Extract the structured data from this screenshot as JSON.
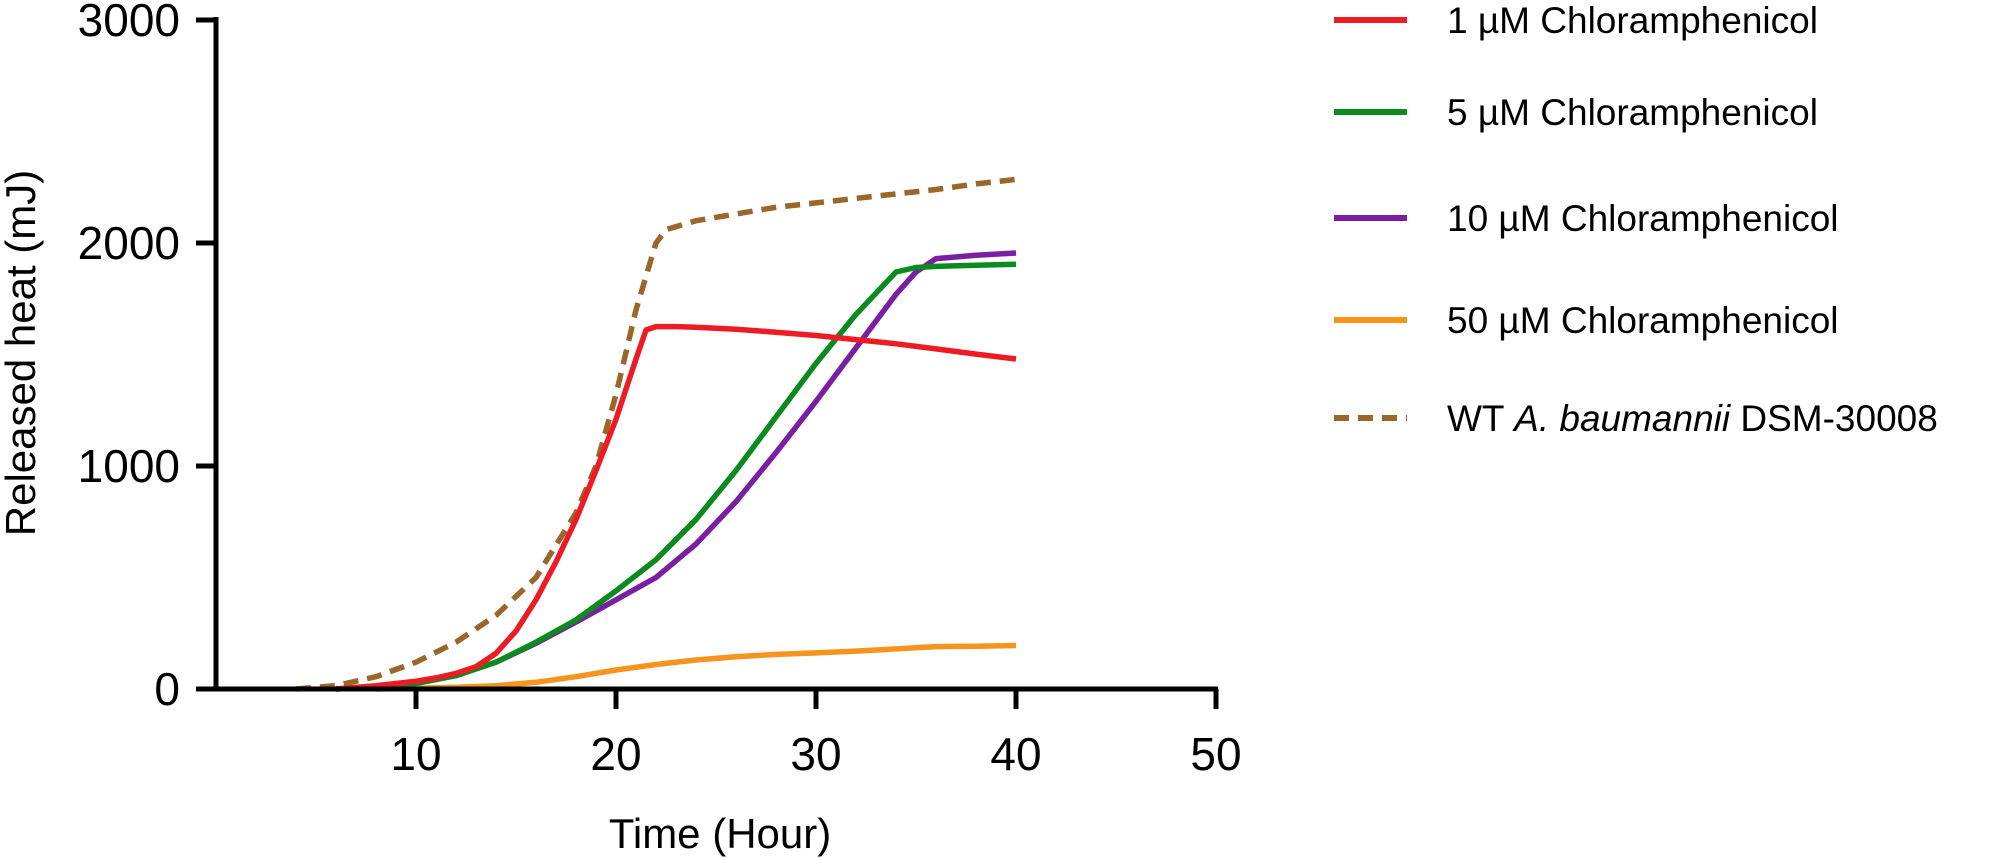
{
  "chart_data": {
    "type": "line",
    "title": "",
    "xlabel": "Time (Hour)",
    "ylabel": "Released heat (mJ)",
    "xlim": [
      0,
      50
    ],
    "ylim": [
      0,
      3000
    ],
    "xticks": [
      10,
      20,
      30,
      40,
      50
    ],
    "yticks": [
      0,
      1000,
      2000,
      3000
    ],
    "grid": false,
    "legend_position": "right",
    "series": [
      {
        "name_parts": [
          "1 µM Chloramphenicol"
        ],
        "color": "#ED1C24",
        "dash": false,
        "x": [
          6,
          8,
          10,
          11,
          12,
          13,
          14,
          15,
          16,
          17,
          18,
          19,
          20,
          21,
          21.5,
          22,
          23,
          24,
          26,
          28,
          30,
          32,
          34,
          36,
          38,
          40
        ],
        "y": [
          0,
          15,
          35,
          50,
          70,
          100,
          160,
          260,
          400,
          570,
          760,
          980,
          1210,
          1480,
          1610,
          1625,
          1625,
          1622,
          1613,
          1600,
          1585,
          1567,
          1548,
          1525,
          1502,
          1480
        ]
      },
      {
        "name_parts": [
          "5 µM Chloramphenicol"
        ],
        "color": "#0B8A1E",
        "dash": false,
        "x": [
          6,
          8,
          10,
          12,
          14,
          16,
          18,
          20,
          22,
          24,
          26,
          28,
          30,
          32,
          34,
          35,
          36,
          38,
          40
        ],
        "y": [
          0,
          10,
          25,
          60,
          120,
          210,
          310,
          440,
          580,
          760,
          980,
          1220,
          1460,
          1680,
          1870,
          1890,
          1895,
          1900,
          1905
        ]
      },
      {
        "name_parts": [
          "10 µM Chloramphenicol"
        ],
        "color": "#7A1FA2",
        "dash": false,
        "x": [
          6,
          8,
          10,
          12,
          14,
          16,
          18,
          20,
          22,
          24,
          26,
          28,
          30,
          32,
          34,
          35,
          36,
          38,
          40
        ],
        "y": [
          0,
          10,
          25,
          60,
          120,
          205,
          300,
          400,
          500,
          650,
          840,
          1060,
          1290,
          1530,
          1770,
          1870,
          1930,
          1945,
          1955
        ]
      },
      {
        "name_parts": [
          "50 µM Chloramphenicol"
        ],
        "color": "#F7941D",
        "dash": false,
        "x": [
          8,
          10,
          12,
          14,
          16,
          18,
          20,
          22,
          24,
          26,
          28,
          30,
          32,
          34,
          36,
          38,
          40
        ],
        "y": [
          0,
          3,
          8,
          15,
          30,
          55,
          85,
          110,
          130,
          145,
          155,
          162,
          170,
          180,
          190,
          192,
          195
        ]
      },
      {
        "name_parts": [
          "WT ",
          "A. baumannii",
          " DSM-30008"
        ],
        "color": "#99672A",
        "dash": true,
        "x": [
          4,
          6,
          8,
          10,
          12,
          14,
          16,
          18,
          19,
          20,
          21,
          22,
          22.5,
          24,
          26,
          28,
          30,
          32,
          34,
          36,
          38,
          40
        ],
        "y": [
          0,
          15,
          55,
          120,
          210,
          330,
          500,
          790,
          1000,
          1320,
          1700,
          2000,
          2060,
          2100,
          2130,
          2160,
          2180,
          2200,
          2220,
          2240,
          2265,
          2285
        ]
      }
    ]
  }
}
